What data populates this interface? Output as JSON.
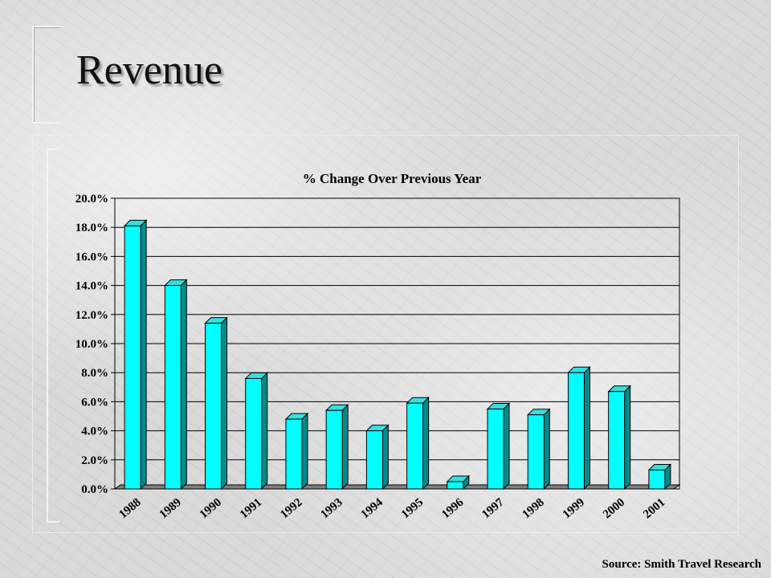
{
  "slide": {
    "title": "Revenue",
    "source": "Source: Smith Travel Research"
  },
  "colors": {
    "bar_front": "#00ffff",
    "bar_top": "#33e0e0",
    "bar_side": "#008b8b",
    "floor": "#808080"
  },
  "chart_data": {
    "type": "bar",
    "title": "% Change Over Previous Year",
    "xlabel": "",
    "ylabel": "",
    "categories": [
      "1988",
      "1989",
      "1990",
      "1991",
      "1992",
      "1993",
      "1994",
      "1995",
      "1996",
      "1997",
      "1998",
      "1999",
      "2000",
      "2001"
    ],
    "values": [
      18.1,
      14.0,
      11.4,
      7.6,
      4.8,
      5.4,
      4.0,
      5.9,
      0.5,
      5.5,
      5.1,
      8.0,
      6.7,
      1.3
    ],
    "ylim": [
      0,
      20
    ],
    "yticks": [
      "0.0%",
      "2.0%",
      "4.0%",
      "6.0%",
      "8.0%",
      "10.0%",
      "12.0%",
      "14.0%",
      "16.0%",
      "18.0%",
      "20.0%"
    ],
    "grid": true,
    "legend": "none"
  }
}
